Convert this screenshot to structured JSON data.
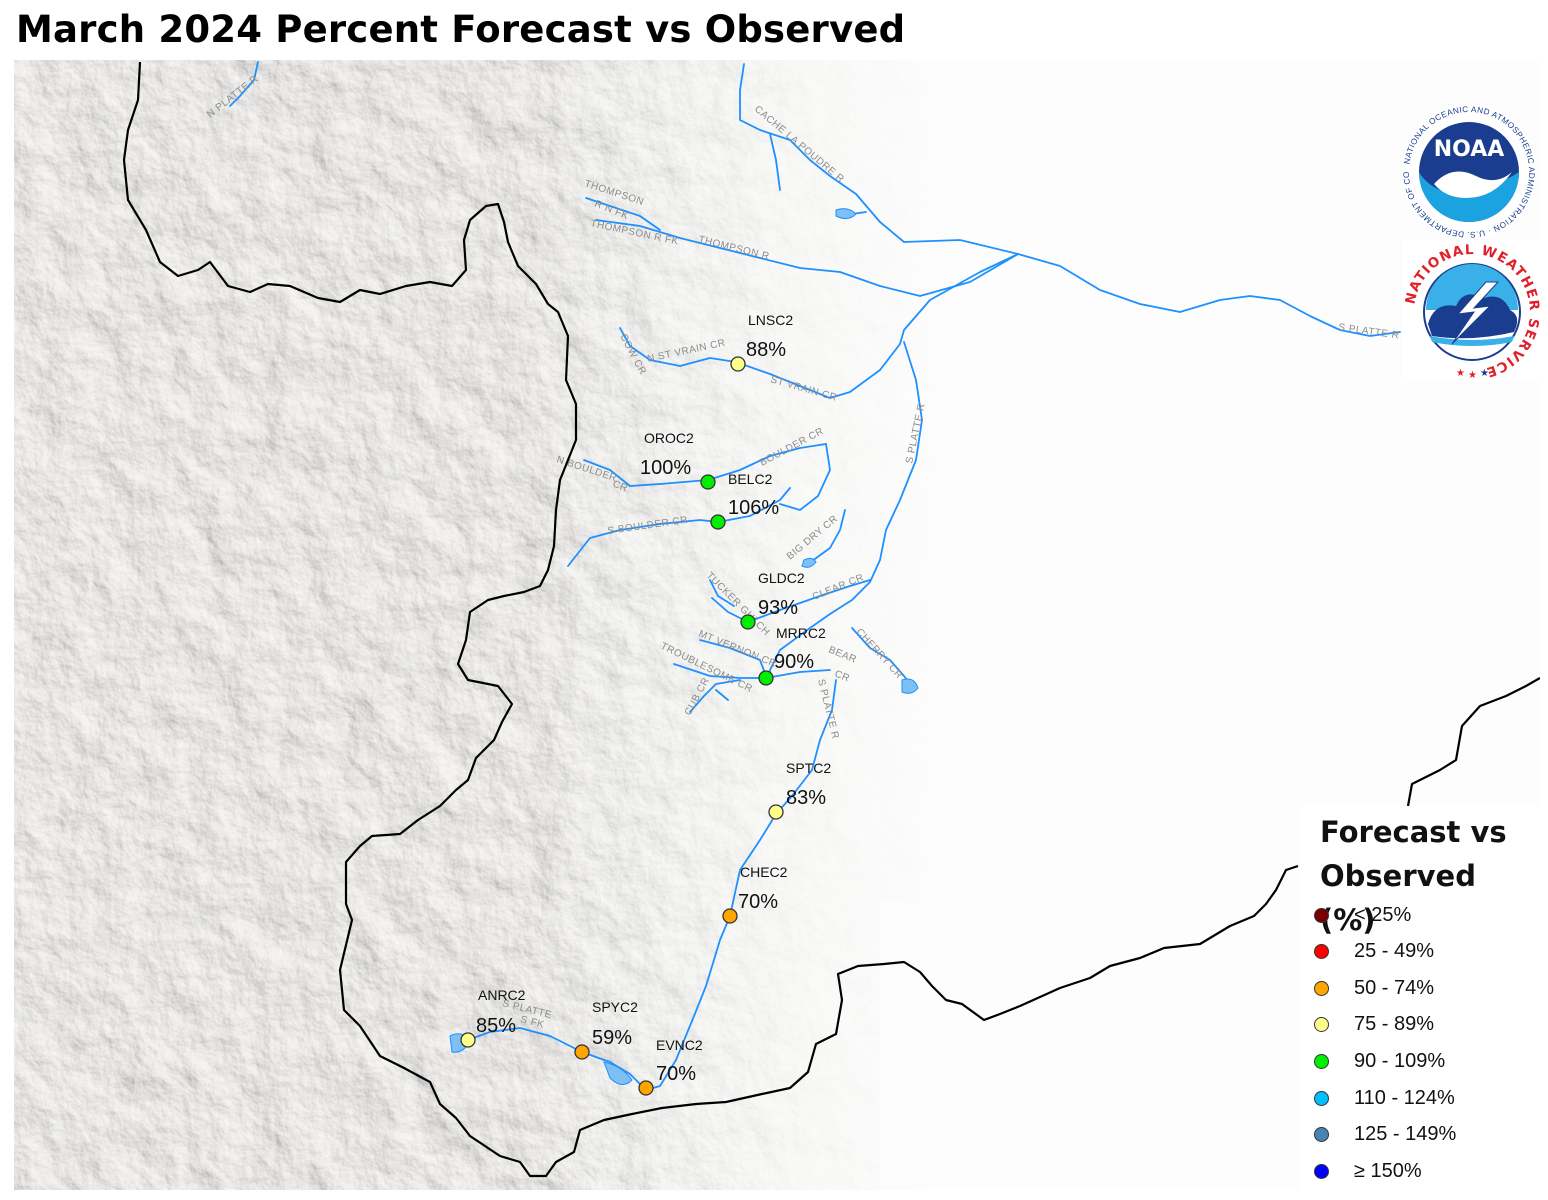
{
  "title": "March 2024 Percent Forecast vs Observed",
  "stations": [
    {
      "id": "LNSC2",
      "value": "88%",
      "category": "75 - 89%"
    },
    {
      "id": "OROC2",
      "value": "100%",
      "category": "90 - 109%"
    },
    {
      "id": "BELC2",
      "value": "106%",
      "category": "90 - 109%"
    },
    {
      "id": "GLDC2",
      "value": "93%",
      "category": "90 - 109%"
    },
    {
      "id": "MRRC2",
      "value": "90%",
      "category": "90 - 109%"
    },
    {
      "id": "SPTC2",
      "value": "83%",
      "category": "75 - 89%"
    },
    {
      "id": "CHEC2",
      "value": "70%",
      "category": "50 - 74%"
    },
    {
      "id": "ANRC2",
      "value": "85%",
      "category": "75 - 89%"
    },
    {
      "id": "SPYC2",
      "value": "59%",
      "category": "50 - 74%"
    },
    {
      "id": "EVNC2",
      "value": "70%",
      "category": "50 - 74%"
    }
  ],
  "rivers": {
    "n_platte": "N PLATTE R",
    "cache_la_poudre": "CACHE LA POUDRE R",
    "thompson_upper": "THOMPSON",
    "thompson_nfk": "R N FK",
    "thompson_r_fk": "THOMPSON R FK",
    "thompson_r": "THOMPSON R",
    "s_platte_r_east": "S PLATTE R",
    "cow_cr": "COW CR",
    "n_st_vrain": "N ST VRAIN CR",
    "st_vrain": "ST VRAIN CR",
    "boulder_cr": "BOULDER CR",
    "s_platte_r_mid": "S PLATTE R",
    "n_boulder": "N BOULDER",
    "cr": "CR",
    "s_boulder": "S BOULDER CR",
    "big_dry": "BIG DRY CR",
    "tucker_gulch": "TUCKER GULCH",
    "clear_cr": "CLEAR CR",
    "mt_vernon": "MT VERNON CR",
    "cherry_cr": "CHERRY CR",
    "troublesome": "TROUBLESOME CR",
    "bear": "BEAR",
    "bear_cr": "CR",
    "cub_cr": "CUB CR",
    "s_platte_r_south": "S PLATTE R",
    "s_platte_sfk_1": "S PLATTE",
    "s_platte_sfk_2": "S FK"
  },
  "legend": {
    "title_line1": "Forecast vs",
    "title_line2": "Observed (%)",
    "items": [
      {
        "label": "< 25%",
        "color": "#7a0000"
      },
      {
        "label": "25 - 49%",
        "color": "#ff0000"
      },
      {
        "label": "50 - 74%",
        "color": "#ffa500"
      },
      {
        "label": "75 - 89%",
        "color": "#ffff8c"
      },
      {
        "label": "90 - 109%",
        "color": "#00ee00"
      },
      {
        "label": "110 - 124%",
        "color": "#00bfff"
      },
      {
        "label": "125 - 149%",
        "color": "#4682b4"
      },
      {
        "label": "≥ 150%",
        "color": "#0000ff"
      }
    ]
  },
  "logos": {
    "noaa_text": "NOAA",
    "noaa_ring": "NATIONAL OCEANIC AND ATMOSPHERIC ADMINISTRATION · U.S. DEPARTMENT OF COMMERCE",
    "nws_ring": "NATIONAL WEATHER SERVICE"
  },
  "colors": {
    "river": "#1e90ff",
    "boundary": "#000000",
    "terrain_light": "#f4f2ef",
    "terrain_dark": "#ccc6bd",
    "noaa_blue": "#1a3d8f",
    "noaa_light": "#1aa3e0",
    "nws_red": "#e0202a"
  }
}
